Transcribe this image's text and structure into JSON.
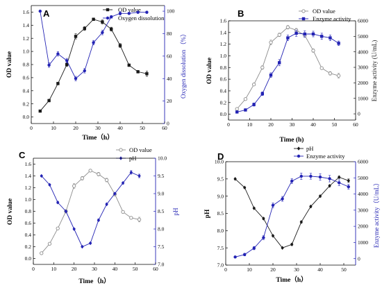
{
  "colors": {
    "black": "#1a1a1a",
    "gray": "#8c8c8c",
    "blue": "#2323b4"
  },
  "chart_data": [
    {
      "panel_label": "A",
      "type": "line",
      "xlabel": "Time（h）",
      "xlim": [
        0,
        60
      ],
      "xticks": [
        0,
        10,
        20,
        30,
        40,
        50,
        60
      ],
      "ylabel_left": "OD value",
      "ylim_left": [
        -0.1,
        1.7
      ],
      "yticks_left": [
        "0.0",
        "0.2",
        "0.4",
        "0.6",
        "0.8",
        "1.0",
        "1.2",
        "1.4",
        "1.6"
      ],
      "ylabel_right": "Oxygen dissolution （%）",
      "ylim_right": [
        0,
        105
      ],
      "yticks_right": [
        "0",
        "20",
        "40",
        "60",
        "80",
        "100"
      ],
      "legend_position": "top-center",
      "series": [
        {
          "name": "OD value",
          "axis": "left",
          "marker": "square-filled",
          "color": "#1a1a1a",
          "x": [
            4,
            8,
            12,
            16,
            20,
            24,
            28,
            32,
            36,
            40,
            44,
            48,
            52
          ],
          "values": [
            0.09,
            0.25,
            0.51,
            0.8,
            1.23,
            1.35,
            1.49,
            1.45,
            1.34,
            1.09,
            0.79,
            0.69,
            0.66
          ],
          "errors": [
            0.01,
            0.02,
            0.02,
            0.03,
            0.04,
            0.03,
            0.02,
            0.03,
            0.03,
            0.03,
            0.02,
            0.02,
            0.04
          ]
        },
        {
          "name": "Oxygen dissolution",
          "axis": "right",
          "marker": "circle-filled",
          "color": "#2323b4",
          "x": [
            4,
            8,
            12,
            16,
            20,
            24,
            28,
            32,
            36,
            40,
            44,
            48,
            52
          ],
          "values": [
            100,
            52,
            62,
            56,
            40,
            47,
            72,
            81,
            95,
            98,
            98,
            99,
            99
          ],
          "errors": [
            0.5,
            2,
            2,
            2,
            2,
            2,
            2,
            2,
            1,
            1.5,
            1,
            1,
            1
          ]
        }
      ]
    },
    {
      "panel_label": "B",
      "type": "line",
      "xlabel": "Time (h)",
      "xlim": [
        0,
        60
      ],
      "xticks": [
        0,
        10,
        20,
        30,
        40,
        50,
        60
      ],
      "ylabel_left": "OD value",
      "ylim_left": [
        -0.1,
        1.6
      ],
      "yticks_left": [
        "0.0",
        "0.2",
        "0.4",
        "0.6",
        "0.8",
        "1.0",
        "1.2",
        "1.4",
        "1.6"
      ],
      "ylabel_right": "Enzyme activity (U/mL)",
      "ylim_right": [
        -400,
        6000
      ],
      "yticks_right": [
        "0",
        "1000",
        "2000",
        "3000",
        "4000",
        "5000",
        "6000"
      ],
      "legend_position": "top-center",
      "series": [
        {
          "name": "OD value",
          "axis": "left",
          "marker": "circle-open",
          "color": "#8c8c8c",
          "x": [
            4,
            8,
            12,
            16,
            20,
            24,
            28,
            32,
            36,
            40,
            44,
            48,
            52
          ],
          "values": [
            0.09,
            0.26,
            0.51,
            0.8,
            1.23,
            1.36,
            1.49,
            1.44,
            1.35,
            1.09,
            0.79,
            0.7,
            0.66
          ],
          "errors": [
            0.01,
            0.02,
            0.02,
            0.03,
            0.04,
            0.03,
            0.03,
            0.03,
            0.03,
            0.03,
            0.02,
            0.03,
            0.04
          ]
        },
        {
          "name": "Enzyme activity",
          "axis": "right",
          "marker": "square-filled",
          "color": "#2323b4",
          "x": [
            4,
            8,
            12,
            16,
            20,
            24,
            28,
            32,
            36,
            40,
            44,
            48,
            52
          ],
          "values": [
            120,
            250,
            600,
            1300,
            2500,
            3300,
            4900,
            5200,
            5150,
            5150,
            5000,
            4900,
            4550
          ],
          "errors": [
            60,
            80,
            100,
            120,
            150,
            200,
            180,
            200,
            200,
            180,
            200,
            180,
            150
          ]
        }
      ]
    },
    {
      "panel_label": "C",
      "type": "line",
      "xlabel": "Time（h）",
      "xlim": [
        0,
        60
      ],
      "xticks": [
        0,
        10,
        20,
        30,
        40,
        50,
        60
      ],
      "ylabel_left": "OD value",
      "ylim_left": [
        -0.1,
        1.7
      ],
      "yticks_left": [
        "0.0",
        "0.2",
        "0.4",
        "0.6",
        "0.8",
        "1.0",
        "1.2",
        "1.4",
        "1.6"
      ],
      "ylabel_right": "pH",
      "ylim_right": [
        7.0,
        10.0
      ],
      "yticks_right": [
        "7.0",
        "7.5",
        "8.0",
        "8.5",
        "9.0",
        "9.5",
        "10.0"
      ],
      "legend_position": "top-center",
      "series": [
        {
          "name": "OD value",
          "axis": "left",
          "marker": "circle-open",
          "color": "#8c8c8c",
          "x": [
            4,
            8,
            12,
            16,
            20,
            24,
            28,
            32,
            36,
            40,
            44,
            48,
            52
          ],
          "values": [
            0.09,
            0.25,
            0.51,
            0.8,
            1.23,
            1.36,
            1.49,
            1.43,
            1.33,
            1.09,
            0.79,
            0.69,
            0.66
          ],
          "errors": [
            0.02,
            0.02,
            0.02,
            0.03,
            0.04,
            0.03,
            0.02,
            0.03,
            0.03,
            0.03,
            0.02,
            0.02,
            0.04
          ]
        },
        {
          "name": "pH",
          "axis": "right",
          "marker": "diamond-filled",
          "color": "#2323b4",
          "x": [
            4,
            8,
            12,
            16,
            20,
            24,
            28,
            32,
            36,
            40,
            44,
            48,
            52
          ],
          "values": [
            9.5,
            9.25,
            8.75,
            8.5,
            8.0,
            7.5,
            7.6,
            8.25,
            8.7,
            9.0,
            9.3,
            9.6,
            9.5
          ],
          "errors": [
            0.02,
            0.02,
            0.03,
            0.02,
            0.02,
            0.02,
            0.02,
            0.03,
            0.03,
            0.03,
            0.03,
            0.05,
            0.05
          ]
        }
      ]
    },
    {
      "panel_label": "D",
      "type": "line",
      "xlabel": "Time（h）",
      "xlim": [
        0,
        55
      ],
      "xticks": [
        0,
        10,
        20,
        30,
        40,
        50
      ],
      "ylabel_left": "pH",
      "ylim_left": [
        7.0,
        10.0
      ],
      "yticks_left": [
        "7.0",
        "7.5",
        "8.0",
        "8.5",
        "9.0",
        "9.5",
        "10.0"
      ],
      "ylabel_right": "Enzyme activity（U/mL）",
      "ylim_right": [
        -400,
        6000
      ],
      "yticks_right": [
        "0",
        "1000",
        "2000",
        "3000",
        "4000",
        "5000",
        "6000"
      ],
      "legend_position": "top-right",
      "series": [
        {
          "name": "pH",
          "axis": "left",
          "marker": "diamond-filled",
          "color": "#1a1a1a",
          "x": [
            4,
            8,
            12,
            16,
            20,
            24,
            28,
            32,
            36,
            40,
            44,
            48,
            52
          ],
          "values": [
            9.5,
            9.25,
            8.65,
            8.35,
            7.85,
            7.5,
            7.6,
            8.25,
            8.7,
            9.0,
            9.3,
            9.55,
            9.45
          ],
          "errors": [
            0.02,
            0.02,
            0.02,
            0.03,
            0.02,
            0.02,
            0.03,
            0.03,
            0.03,
            0.03,
            0.03,
            0.03,
            0.05
          ]
        },
        {
          "name": "Enzyme activity",
          "axis": "right",
          "marker": "circle-filled",
          "color": "#2323b4",
          "x": [
            4,
            8,
            12,
            16,
            20,
            24,
            28,
            32,
            36,
            40,
            44,
            48,
            52
          ],
          "values": [
            100,
            250,
            650,
            1300,
            3300,
            3700,
            4800,
            5100,
            5100,
            5050,
            4950,
            4700,
            4450
          ],
          "errors": [
            50,
            80,
            100,
            120,
            150,
            150,
            150,
            200,
            180,
            200,
            200,
            180,
            150
          ]
        }
      ]
    }
  ]
}
